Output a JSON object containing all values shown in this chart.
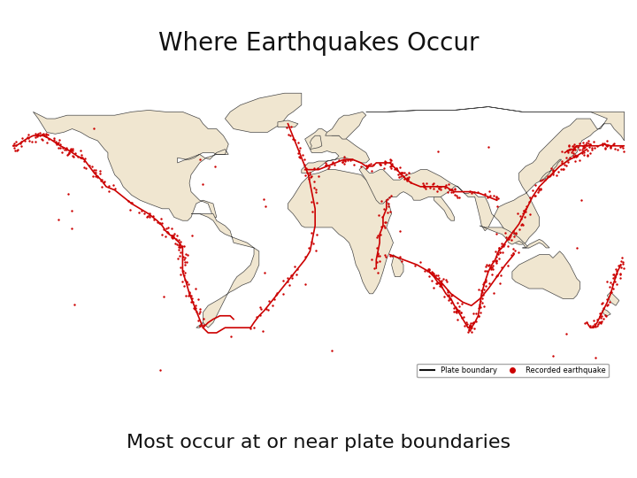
{
  "title": "Where Earthquakes Occur",
  "subtitle": "Most occur at or near plate boundaries",
  "title_fontsize": 20,
  "subtitle_fontsize": 16,
  "background_color": "#ffffff",
  "legend_line_label": "Plate boundary",
  "legend_dot_label": "Recorded earthquake",
  "legend_line_color": "#111111",
  "legend_dot_color": "#cc0000",
  "map_ocean_color": "#b8d4e8",
  "map_land_color": "#f0e6d0",
  "plate_color": "#cc0000",
  "plate_lw": 1.2,
  "eq_color": "#cc0000",
  "eq_size": 3
}
